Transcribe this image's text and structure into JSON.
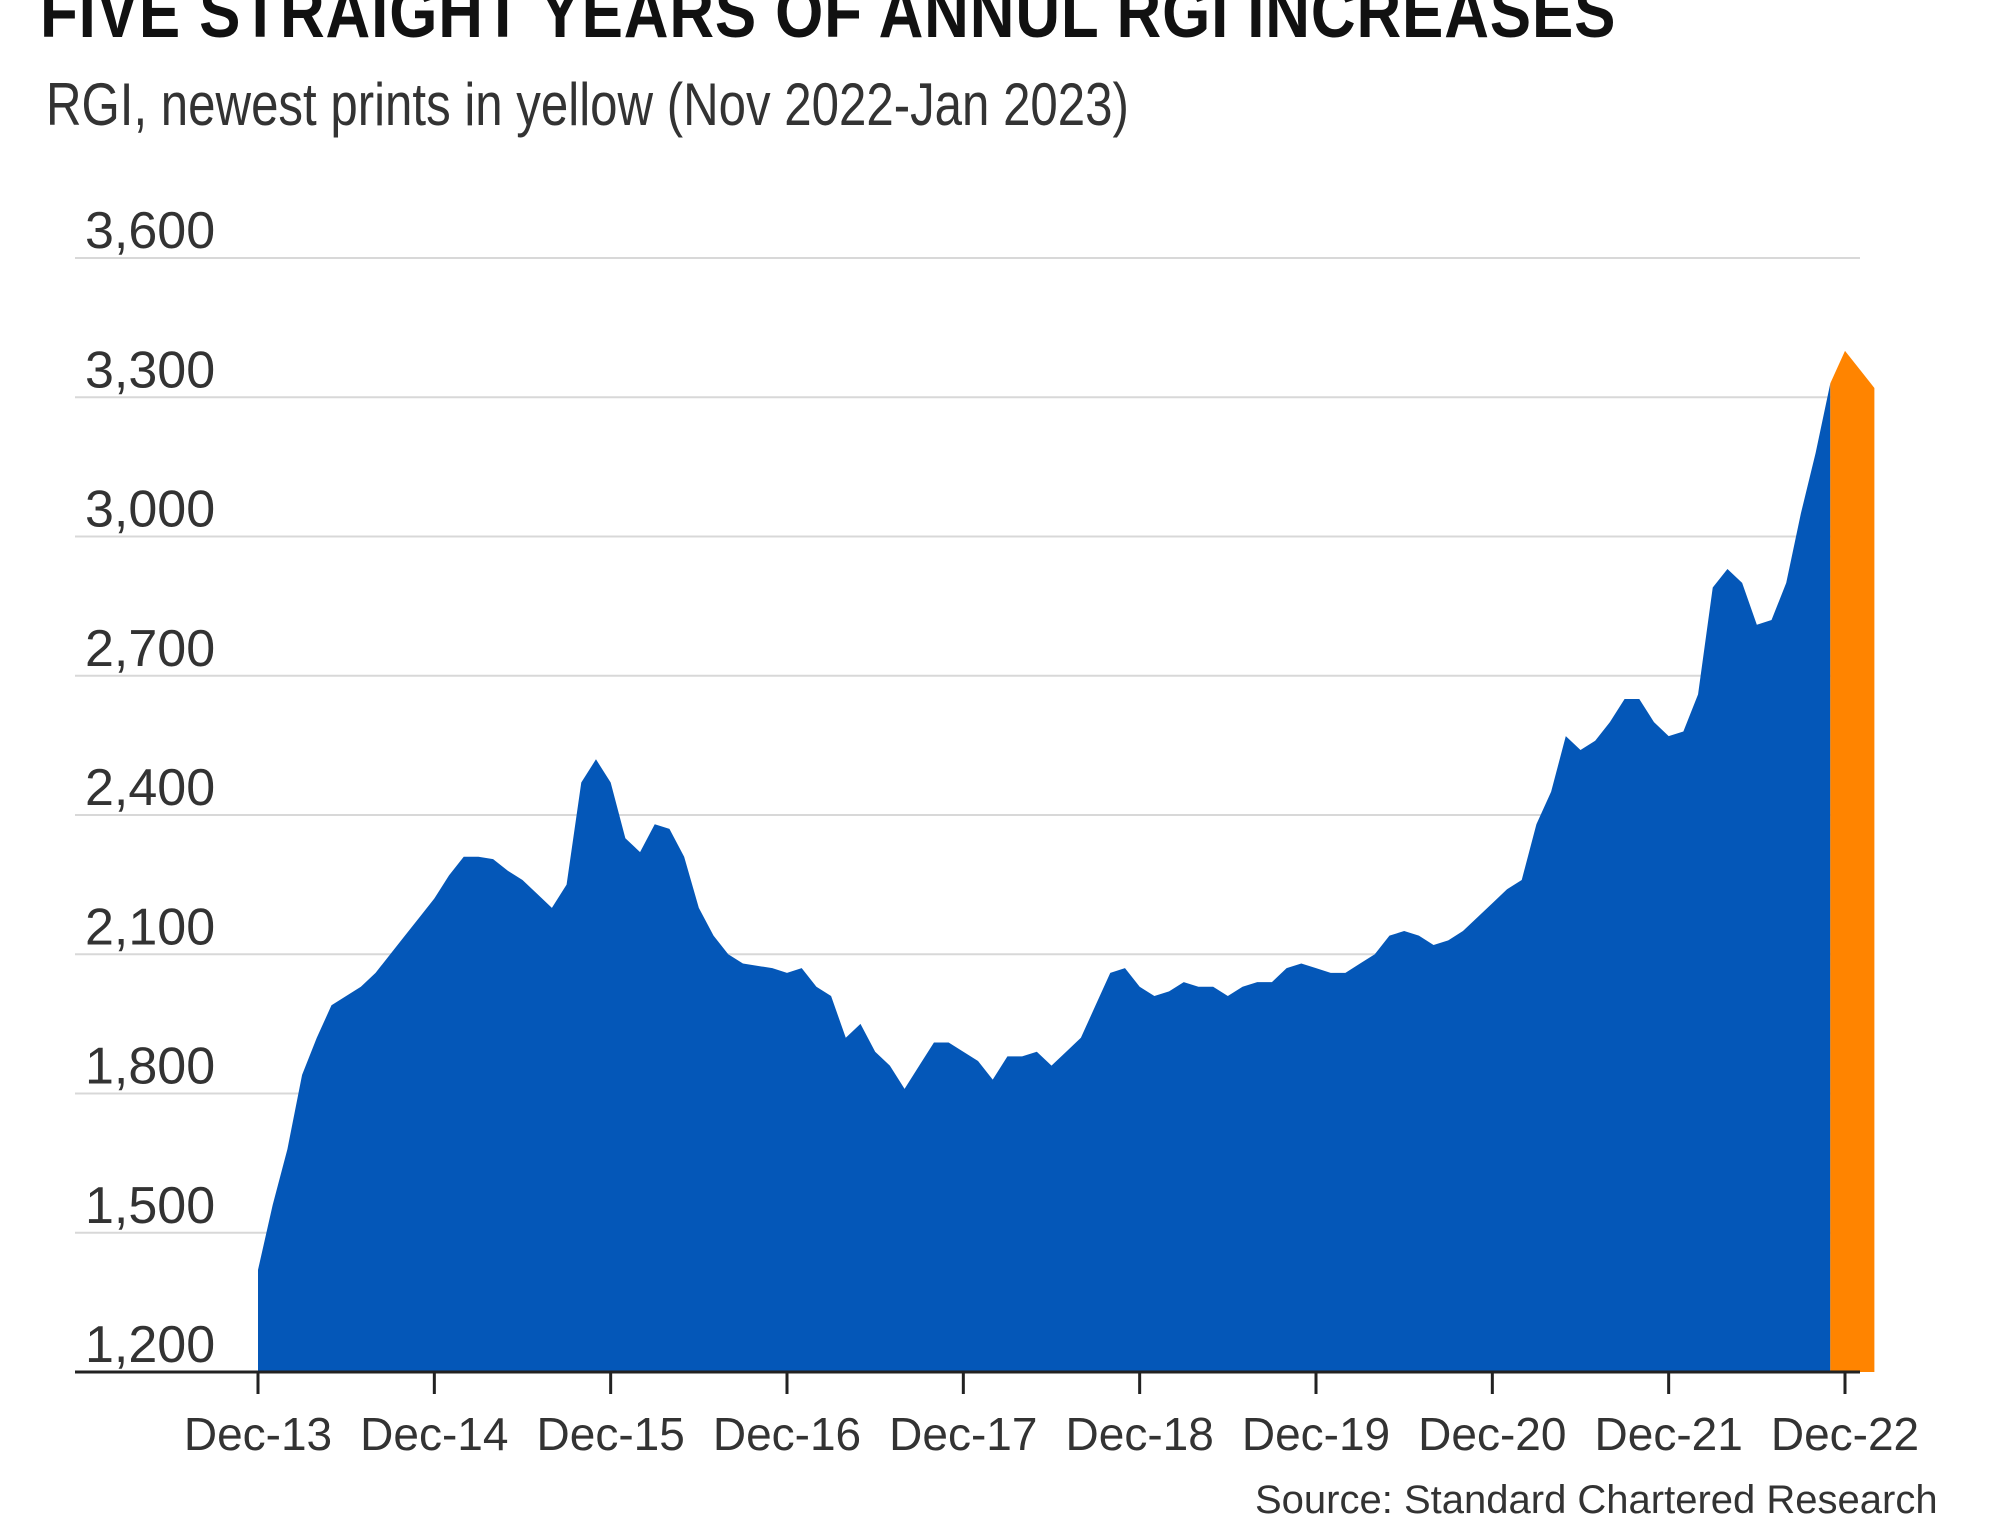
{
  "chart_data": {
    "type": "area",
    "title": "FIVE STRAIGHT YEARS OF ANNUL RGI INCREASES",
    "subtitle": "RGI, newest prints in yellow (Nov 2022-Jan 2023)",
    "source": "Source: Standard Chartered Research",
    "ylim": [
      1200,
      3600
    ],
    "yticks": [
      3600,
      3300,
      3000,
      2700,
      2400,
      2100,
      1800,
      1500,
      1200
    ],
    "ytick_labels": [
      "3,600",
      "3,300",
      "3,000",
      "2,700",
      "2,400",
      "2,100",
      "1,800",
      "1,500",
      "1,200"
    ],
    "xlim": [
      0,
      110
    ],
    "xticks": [
      0,
      12,
      24,
      36,
      48,
      60,
      72,
      84,
      96,
      108
    ],
    "xtick_labels": [
      "Dec-13",
      "Dec-14",
      "Dec-15",
      "Dec-16",
      "Dec-17",
      "Dec-18",
      "Dec-19",
      "Dec-20",
      "Dec-21",
      "Dec-22"
    ],
    "grid": true,
    "series": [
      {
        "color": "#0457b8",
        "points": [
          [
            0,
            1420
          ],
          [
            1,
            1560
          ],
          [
            2,
            1680
          ],
          [
            3,
            1840
          ],
          [
            4,
            1920
          ],
          [
            5,
            1990
          ],
          [
            6,
            2010
          ],
          [
            7,
            2030
          ],
          [
            8,
            2060
          ],
          [
            9,
            2100
          ],
          [
            10,
            2140
          ],
          [
            11,
            2180
          ],
          [
            12,
            2220
          ],
          [
            13,
            2270
          ],
          [
            14,
            2310
          ],
          [
            15,
            2310
          ],
          [
            16,
            2305
          ],
          [
            17,
            2280
          ],
          [
            18,
            2260
          ],
          [
            19,
            2230
          ],
          [
            20,
            2200
          ],
          [
            21,
            2250
          ],
          [
            22,
            2470
          ],
          [
            23,
            2520
          ],
          [
            24,
            2470
          ],
          [
            25,
            2350
          ],
          [
            26,
            2320
          ],
          [
            27,
            2380
          ],
          [
            28,
            2370
          ],
          [
            29,
            2310
          ],
          [
            30,
            2200
          ],
          [
            31,
            2140
          ],
          [
            32,
            2100
          ],
          [
            33,
            2080
          ],
          [
            34,
            2075
          ],
          [
            35,
            2070
          ],
          [
            36,
            2060
          ],
          [
            37,
            2070
          ],
          [
            38,
            2030
          ],
          [
            39,
            2010
          ],
          [
            40,
            1920
          ],
          [
            41,
            1950
          ],
          [
            42,
            1890
          ],
          [
            43,
            1860
          ],
          [
            44,
            1810
          ],
          [
            45,
            1860
          ],
          [
            46,
            1910
          ],
          [
            47,
            1910
          ],
          [
            48,
            1890
          ],
          [
            49,
            1870
          ],
          [
            50,
            1830
          ],
          [
            51,
            1880
          ],
          [
            52,
            1880
          ],
          [
            53,
            1890
          ],
          [
            54,
            1860
          ],
          [
            55,
            1890
          ],
          [
            56,
            1920
          ],
          [
            57,
            1990
          ],
          [
            58,
            2060
          ],
          [
            59,
            2070
          ],
          [
            60,
            2030
          ],
          [
            61,
            2010
          ],
          [
            62,
            2020
          ],
          [
            63,
            2040
          ],
          [
            64,
            2030
          ],
          [
            65,
            2030
          ],
          [
            66,
            2010
          ],
          [
            67,
            2030
          ],
          [
            68,
            2040
          ],
          [
            69,
            2040
          ],
          [
            70,
            2070
          ],
          [
            71,
            2080
          ],
          [
            72,
            2070
          ],
          [
            73,
            2060
          ],
          [
            74,
            2060
          ],
          [
            75,
            2080
          ],
          [
            76,
            2100
          ],
          [
            77,
            2140
          ],
          [
            78,
            2150
          ],
          [
            79,
            2140
          ],
          [
            80,
            2120
          ],
          [
            81,
            2130
          ],
          [
            82,
            2150
          ],
          [
            83,
            2180
          ],
          [
            84,
            2210
          ],
          [
            85,
            2240
          ],
          [
            86,
            2260
          ],
          [
            87,
            2380
          ],
          [
            88,
            2450
          ],
          [
            89,
            2570
          ],
          [
            90,
            2540
          ],
          [
            91,
            2560
          ],
          [
            92,
            2600
          ],
          [
            93,
            2650
          ],
          [
            94,
            2650
          ],
          [
            95,
            2600
          ],
          [
            96,
            2570
          ],
          [
            97,
            2580
          ],
          [
            98,
            2660
          ],
          [
            99,
            2890
          ],
          [
            100,
            2930
          ],
          [
            101,
            2900
          ],
          [
            102,
            2810
          ],
          [
            103,
            2820
          ],
          [
            104,
            2900
          ],
          [
            105,
            3050
          ],
          [
            106,
            3180
          ],
          [
            107,
            3330
          ]
        ]
      },
      {
        "name": "newest prints",
        "color": "#ff8400",
        "points": [
          [
            107,
            3330
          ],
          [
            108,
            3400
          ],
          [
            109,
            3360
          ],
          [
            110,
            3320
          ]
        ]
      }
    ]
  }
}
